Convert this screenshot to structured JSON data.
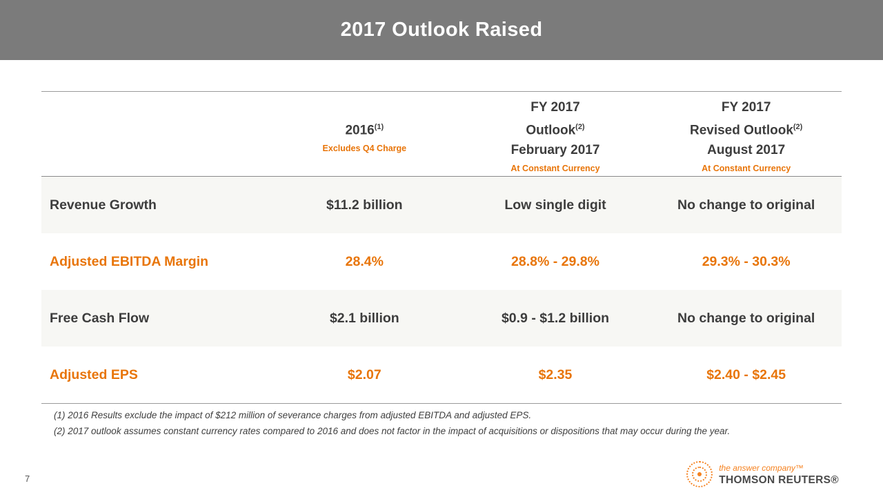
{
  "slide": {
    "title": "2017 Outlook Raised",
    "page_number": "7"
  },
  "table": {
    "columns": {
      "c2016": {
        "title": "2016",
        "sup": "(1)",
        "note": "Excludes Q4 Charge"
      },
      "feb": {
        "top": "FY 2017",
        "title": "Outlook",
        "sup": "(2)",
        "date": "February 2017",
        "note": "At Constant Currency"
      },
      "aug": {
        "top": "FY 2017",
        "title": "Revised Outlook",
        "sup": "(2)",
        "date": "August 2017",
        "note": "At Constant Currency"
      }
    },
    "rows": [
      {
        "label": "Revenue Growth",
        "values": [
          "$11.2 billion",
          "Low single digit",
          "No change to original"
        ],
        "highlight": false
      },
      {
        "label": "Adjusted EBITDA Margin",
        "values": [
          "28.4%",
          "28.8% - 29.8%",
          "29.3% - 30.3%"
        ],
        "highlight": true
      },
      {
        "label": "Free Cash Flow",
        "values": [
          "$2.1 billion",
          "$0.9 - $1.2 billion",
          "No change to original"
        ],
        "highlight": false
      },
      {
        "label": "Adjusted EPS",
        "values": [
          "$2.07",
          "$2.35",
          "$2.40 - $2.45"
        ],
        "highlight": true
      }
    ]
  },
  "footnotes": [
    "(1)  2016 Results exclude the impact of $212 million of severance charges from adjusted EBITDA and adjusted EPS.",
    "(2)  2017 outlook assumes constant currency rates compared to 2016 and does not factor in the impact of acquisitions or dispositions that may occur during the year."
  ],
  "footer": {
    "tagline": "the answer company™",
    "brand": "THOMSON REUTERS®"
  },
  "colors": {
    "accent": "#e8750a",
    "logo_orange": "#f58220",
    "header_bg": "#7b7b7b",
    "row_shade": "#f7f7f4",
    "text_dark": "#404040",
    "line": "#9a9a9a"
  }
}
